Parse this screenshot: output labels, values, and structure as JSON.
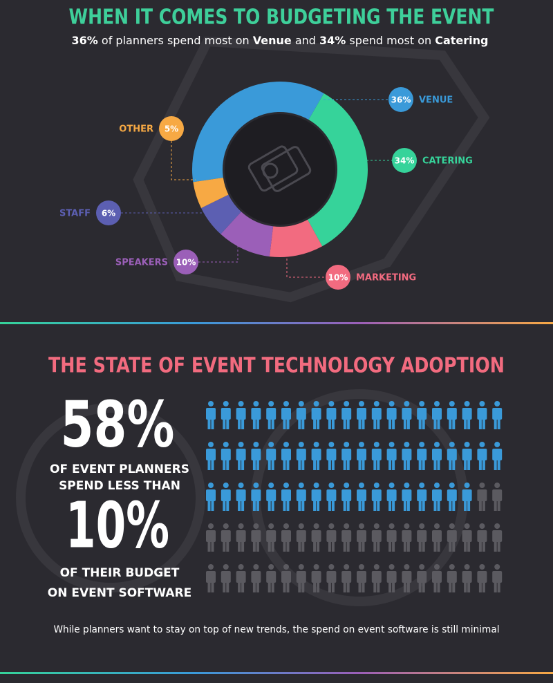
{
  "budget": {
    "title": "WHEN IT COMES TO BUDGETING THE EVENT",
    "subtitle": [
      {
        "text": "36%",
        "bold": true
      },
      {
        "text": " of planners spend most on ",
        "bold": false
      },
      {
        "text": "Venue",
        "bold": true
      },
      {
        "text": " and ",
        "bold": false
      },
      {
        "text": "34%",
        "bold": true
      },
      {
        "text": " spend most on ",
        "bold": false
      },
      {
        "text": "Catering",
        "bold": true
      }
    ],
    "chart_data": {
      "type": "donut",
      "categories": [
        "VENUE",
        "CATERING",
        "MARKETING",
        "SPEAKERS",
        "STAFF",
        "OTHER"
      ],
      "values": [
        36,
        34,
        10,
        10,
        6,
        5
      ],
      "value_labels": [
        "36%",
        "34%",
        "10%",
        "10%",
        "6%",
        "5%"
      ],
      "colors": [
        "#3a9ad9",
        "#36d39a",
        "#f26b80",
        "#9b5fb8",
        "#5c5fb2",
        "#f7a944"
      ]
    }
  },
  "adoption": {
    "title": "THE STATE OF EVENT TECHNOLOGY ADOPTION",
    "headline": {
      "value": 58,
      "label": "58%"
    },
    "headline_text": [
      "OF EVENT PLANNERS",
      "SPEND LESS THAN"
    ],
    "threshold": {
      "value": 10,
      "label": "10%"
    },
    "threshold_text": [
      "OF THEIR BUDGET",
      "ON EVENT SOFTWARE"
    ],
    "pictogram": {
      "total": 100,
      "colors": [
        "#3a9ad9",
        "#5b5a60"
      ]
    },
    "footnote": "While planners want to stay on top of new trends, the spend on event software is still minimal"
  }
}
